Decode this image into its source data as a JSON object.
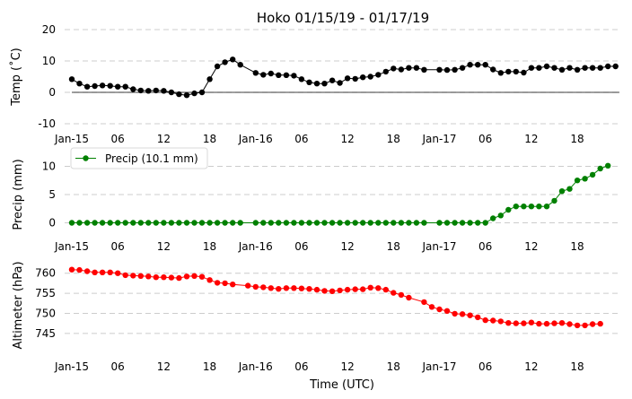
{
  "chart_data": {
    "title": "Hoko 01/15/19 - 01/17/19",
    "xlabel": "Time (UTC)",
    "x_tick_labels": [
      "Jan-15",
      "06",
      "12",
      "18",
      "Jan-16",
      "06",
      "12",
      "18",
      "Jan-17",
      "06",
      "12",
      "18"
    ],
    "x_tick_hours": [
      0,
      6,
      12,
      18,
      24,
      30,
      36,
      42,
      48,
      54,
      60,
      66
    ],
    "xlim": [
      0,
      71.5
    ],
    "panels": [
      {
        "type": "line",
        "ylabel": "Temp ($^\\circ$C)",
        "ylabel_display": "Temp (˚C)",
        "ylim": [
          -10,
          20
        ],
        "yticks": [
          -10,
          0,
          10,
          20
        ],
        "zero_line": true,
        "grid": "horizontal-dashed",
        "series": [
          {
            "color": "#000000",
            "points": [
              [
                0,
                4.2
              ],
              [
                1,
                2.8
              ],
              [
                2,
                1.8
              ],
              [
                3,
                2
              ],
              [
                4,
                2.2
              ],
              [
                5,
                2.1
              ],
              [
                6,
                1.8
              ],
              [
                7,
                1.8
              ],
              [
                8,
                1
              ],
              [
                9,
                0.6
              ],
              [
                10,
                0.5
              ],
              [
                11,
                0.6
              ],
              [
                12,
                0.5
              ],
              [
                13,
                0
              ],
              [
                14,
                -0.6
              ],
              [
                15,
                -0.9
              ],
              [
                16,
                -0.3
              ],
              [
                17,
                0
              ],
              [
                18,
                4.2
              ],
              [
                19,
                8.3
              ],
              [
                20,
                9.6
              ],
              [
                21,
                10.5
              ],
              [
                22,
                8.8
              ],
              [
                24,
                6.2
              ],
              [
                25,
                5.6
              ],
              [
                26,
                6
              ],
              [
                27,
                5.5
              ],
              [
                28,
                5.5
              ],
              [
                29,
                5.3
              ],
              [
                30,
                4.2
              ],
              [
                31,
                3.2
              ],
              [
                32,
                2.8
              ],
              [
                33,
                2.8
              ],
              [
                34,
                3.8
              ],
              [
                35,
                3
              ],
              [
                36,
                4.5
              ],
              [
                37,
                4.3
              ],
              [
                38,
                4.8
              ],
              [
                39,
                5
              ],
              [
                40,
                5.6
              ],
              [
                41,
                6.6
              ],
              [
                42,
                7.6
              ],
              [
                43,
                7.3
              ],
              [
                44,
                7.8
              ],
              [
                45,
                7.8
              ],
              [
                46,
                7.2
              ],
              [
                48,
                7.2
              ],
              [
                49,
                7.1
              ],
              [
                50,
                7.2
              ],
              [
                51,
                7.8
              ],
              [
                52,
                8.8
              ],
              [
                53,
                8.8
              ],
              [
                54,
                8.8
              ],
              [
                55,
                7.3
              ],
              [
                56,
                6.2
              ],
              [
                57,
                6.6
              ],
              [
                58,
                6.6
              ],
              [
                59,
                6.3
              ],
              [
                60,
                7.8
              ],
              [
                61,
                7.8
              ],
              [
                62,
                8.3
              ],
              [
                63,
                7.8
              ],
              [
                64,
                7.2
              ],
              [
                65,
                7.8
              ],
              [
                66,
                7.2
              ],
              [
                67,
                7.8
              ],
              [
                68,
                7.8
              ],
              [
                69,
                7.8
              ],
              [
                70,
                8.3
              ],
              [
                71,
                8.3
              ]
            ]
          }
        ]
      },
      {
        "type": "line",
        "ylabel": "Precip (mm)",
        "ylim": [
          -1.5,
          11.5
        ],
        "yticks": [
          0,
          5,
          10
        ],
        "grid": "horizontal-dashed",
        "legend": {
          "placement": "upper-left",
          "entries": [
            "Precip (10.1 mm)"
          ]
        },
        "series": [
          {
            "name": "Precip (10.1 mm)",
            "color": "#008000",
            "points": [
              [
                0,
                0
              ],
              [
                1,
                0
              ],
              [
                2,
                0
              ],
              [
                3,
                0
              ],
              [
                4,
                0
              ],
              [
                5,
                0
              ],
              [
                6,
                0
              ],
              [
                7,
                0
              ],
              [
                8,
                0
              ],
              [
                9,
                0
              ],
              [
                10,
                0
              ],
              [
                11,
                0
              ],
              [
                12,
                0
              ],
              [
                13,
                0
              ],
              [
                14,
                0
              ],
              [
                15,
                0
              ],
              [
                16,
                0
              ],
              [
                17,
                0
              ],
              [
                18,
                0
              ],
              [
                19,
                0
              ],
              [
                20,
                0
              ],
              [
                21,
                0
              ],
              [
                22,
                0
              ],
              [
                24,
                0
              ],
              [
                25,
                0
              ],
              [
                26,
                0
              ],
              [
                27,
                0
              ],
              [
                28,
                0
              ],
              [
                29,
                0
              ],
              [
                30,
                0
              ],
              [
                31,
                0
              ],
              [
                32,
                0
              ],
              [
                33,
                0
              ],
              [
                34,
                0
              ],
              [
                35,
                0
              ],
              [
                36,
                0
              ],
              [
                37,
                0
              ],
              [
                38,
                0
              ],
              [
                39,
                0
              ],
              [
                40,
                0
              ],
              [
                41,
                0
              ],
              [
                42,
                0
              ],
              [
                43,
                0
              ],
              [
                44,
                0
              ],
              [
                45,
                0
              ],
              [
                46,
                0
              ],
              [
                48,
                0
              ],
              [
                49,
                0
              ],
              [
                50,
                0
              ],
              [
                51,
                0
              ],
              [
                52,
                0
              ],
              [
                53,
                0
              ],
              [
                54,
                0
              ],
              [
                55,
                0.8
              ],
              [
                56,
                1.3
              ],
              [
                57,
                2.3
              ],
              [
                58,
                2.9
              ],
              [
                59,
                2.9
              ],
              [
                60,
                2.9
              ],
              [
                61,
                2.9
              ],
              [
                62,
                2.9
              ],
              [
                63,
                3.9
              ],
              [
                64,
                5.6
              ],
              [
                65,
                6
              ],
              [
                66,
                7.5
              ],
              [
                67,
                7.8
              ],
              [
                68,
                8.5
              ],
              [
                69,
                9.6
              ],
              [
                70,
                10.1
              ]
            ]
          }
        ]
      },
      {
        "type": "line",
        "ylabel": "Altimeter (hPa)",
        "ylim": [
          742.5,
          761.5
        ],
        "yticks": [
          745,
          750,
          755,
          760
        ],
        "grid": "horizontal-dashed",
        "series": [
          {
            "color": "#ff0000",
            "points": [
              [
                0,
                760.9
              ],
              [
                1,
                760.8
              ],
              [
                2,
                760.5
              ],
              [
                3,
                760.2
              ],
              [
                4,
                760.2
              ],
              [
                5,
                760.2
              ],
              [
                6,
                760
              ],
              [
                7,
                759.5
              ],
              [
                8,
                759.4
              ],
              [
                9,
                759.3
              ],
              [
                10,
                759.2
              ],
              [
                11,
                759
              ],
              [
                12,
                759
              ],
              [
                13,
                758.9
              ],
              [
                14,
                758.8
              ],
              [
                15,
                759.2
              ],
              [
                16,
                759.3
              ],
              [
                17,
                759.1
              ],
              [
                18,
                758.3
              ],
              [
                19,
                757.6
              ],
              [
                20,
                757.5
              ],
              [
                21,
                757.2
              ],
              [
                23,
                756.9
              ],
              [
                24,
                756.6
              ],
              [
                25,
                756.5
              ],
              [
                26,
                756.3
              ],
              [
                27,
                756.1
              ],
              [
                28,
                756.3
              ],
              [
                29,
                756.3
              ],
              [
                30,
                756.2
              ],
              [
                31,
                756.1
              ],
              [
                32,
                755.9
              ],
              [
                33,
                755.6
              ],
              [
                34,
                755.5
              ],
              [
                35,
                755.7
              ],
              [
                36,
                755.9
              ],
              [
                37,
                756
              ],
              [
                38,
                756
              ],
              [
                39,
                756.4
              ],
              [
                40,
                756.3
              ],
              [
                41,
                755.9
              ],
              [
                42,
                755.1
              ],
              [
                43,
                754.6
              ],
              [
                44,
                753.9
              ],
              [
                46,
                752.8
              ],
              [
                47,
                751.6
              ],
              [
                48,
                751
              ],
              [
                49,
                750.6
              ],
              [
                50,
                749.9
              ],
              [
                51,
                749.8
              ],
              [
                52,
                749.5
              ],
              [
                53,
                749
              ],
              [
                54,
                748.3
              ],
              [
                55,
                748.2
              ],
              [
                56,
                748
              ],
              [
                57,
                747.6
              ],
              [
                58,
                747.5
              ],
              [
                59,
                747.5
              ],
              [
                60,
                747.7
              ],
              [
                61,
                747.4
              ],
              [
                62,
                747.4
              ],
              [
                63,
                747.5
              ],
              [
                64,
                747.6
              ],
              [
                65,
                747.3
              ],
              [
                66,
                747
              ],
              [
                67,
                747
              ],
              [
                68,
                747.3
              ],
              [
                69,
                747.4
              ]
            ]
          }
        ]
      }
    ]
  }
}
